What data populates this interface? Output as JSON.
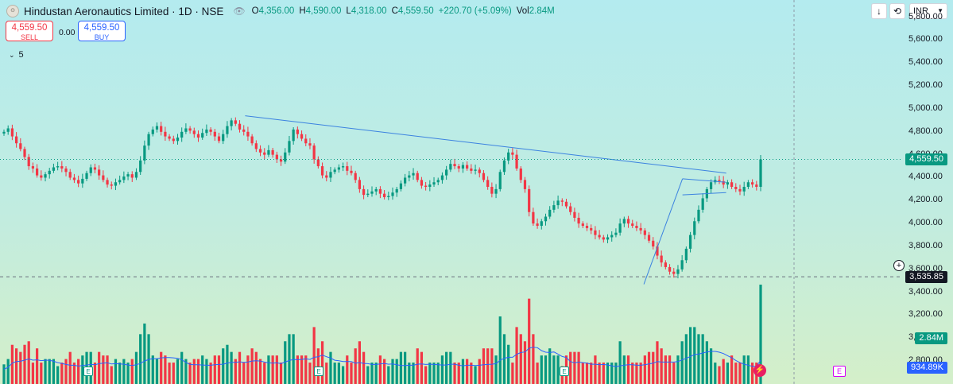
{
  "header": {
    "symbol_icon": "exchange-logo-icon",
    "title": "Hindustan Aeronautics Limited · 1D · NSE",
    "ohlc": [
      {
        "k": "O",
        "v": "4,356.00"
      },
      {
        "k": "H",
        "v": "4,590.00"
      },
      {
        "k": "L",
        "v": "4,318.00"
      },
      {
        "k": "C",
        "v": "4,559.50"
      },
      {
        "k": "",
        "v": "+220.70 (+5.09%)"
      },
      {
        "k": "Vol",
        "v": "2.84M"
      }
    ],
    "sell_price": "4,559.50",
    "sell_label": "SELL",
    "buy_price": "4,559.50",
    "buy_label": "BUY",
    "spread": "0.00",
    "indicators_count": "5"
  },
  "toolbar": {
    "download_icon": "download-icon",
    "fullscreen_icon": "fullscreen-icon",
    "currency": "INR"
  },
  "colors": {
    "up": "#089981",
    "down": "#f23645",
    "trendline": "#3b82e0",
    "ma": "#2962ff",
    "last_price": "#089981",
    "crosshair": "#131722",
    "volume_tag": "#2962ff"
  },
  "chart_data": {
    "type": "candlestick",
    "title": "Hindustan Aeronautics Limited · 1D · NSE",
    "y_ticks": [
      5800,
      5600,
      5400,
      5200,
      5000,
      4800,
      4600,
      4400,
      4200,
      4000,
      3800,
      3600,
      3400,
      3200,
      3000,
      2800
    ],
    "ylim": [
      2600,
      5950
    ],
    "y_tick_labels": [
      "5,800.00",
      "5,600.00",
      "5,400.00",
      "5,200.00",
      "5,000.00",
      "4,800.00",
      "4,600.00",
      "4,400.00",
      "4,200.00",
      "4,000.00",
      "3,800.00",
      "3,600.00",
      "3,400.00",
      "3,200.00",
      "3,000.00",
      "2,800.00"
    ],
    "last_price": 4559.5,
    "last_price_label": "4,559.50",
    "crosshair_price": 3535.85,
    "crosshair_label": "3,535.85",
    "volume_last_label": "2.84M",
    "volume_ma_label": "934.89K",
    "grid": false,
    "close_path": [
      4800,
      4830,
      4760,
      4700,
      4650,
      4580,
      4500,
      4480,
      4420,
      4400,
      4430,
      4460,
      4490,
      4500,
      4480,
      4450,
      4400,
      4380,
      4350,
      4390,
      4440,
      4490,
      4470,
      4420,
      4380,
      4340,
      4330,
      4360,
      4380,
      4410,
      4430,
      4400,
      4450,
      4550,
      4680,
      4780,
      4820,
      4850,
      4800,
      4760,
      4740,
      4720,
      4750,
      4800,
      4830,
      4810,
      4780,
      4750,
      4790,
      4820,
      4800,
      4760,
      4720,
      4780,
      4850,
      4900,
      4870,
      4820,
      4800,
      4760,
      4700,
      4650,
      4620,
      4600,
      4640,
      4600,
      4560,
      4540,
      4620,
      4720,
      4820,
      4780,
      4740,
      4700,
      4680,
      4560,
      4500,
      4420,
      4400,
      4450,
      4470,
      4490,
      4500,
      4460,
      4440,
      4380,
      4300,
      4250,
      4260,
      4280,
      4300,
      4260,
      4230,
      4240,
      4270,
      4300,
      4350,
      4400,
      4420,
      4440,
      4380,
      4330,
      4320,
      4340,
      4360,
      4380,
      4420,
      4470,
      4520,
      4500,
      4480,
      4510,
      4480,
      4460,
      4470,
      4440,
      4380,
      4320,
      4260,
      4300,
      4450,
      4550,
      4620,
      4600,
      4480,
      4380,
      4300,
      4100,
      4000,
      3980,
      4020,
      4060,
      4120,
      4160,
      4200,
      4190,
      4150,
      4100,
      4050,
      4000,
      3980,
      3960,
      3940,
      3900,
      3880,
      3860,
      3880,
      3900,
      3920,
      4000,
      4040,
      4000,
      3980,
      3960,
      3940,
      3900,
      3850,
      3800,
      3720,
      3660,
      3620,
      3580,
      3560,
      3600,
      3680,
      3780,
      3900,
      4020,
      4120,
      4220,
      4300,
      4360,
      4380,
      4370,
      4340,
      4360,
      4320,
      4300,
      4280,
      4320,
      4360,
      4340,
      4320,
      4559.5
    ],
    "trendlines": [
      {
        "from": [
          0.2717,
          4940
        ],
        "to": [
          0.805,
          4440
        ]
      },
      {
        "from": [
          0.7137,
          3470
        ],
        "to": [
          0.7565,
          4390
        ]
      },
      {
        "from": [
          0.7565,
          4390
        ],
        "to": [
          0.8049,
          4360
        ]
      },
      {
        "from": [
          0.7565,
          4250
        ],
        "to": [
          0.8049,
          4270
        ]
      }
    ]
  }
}
